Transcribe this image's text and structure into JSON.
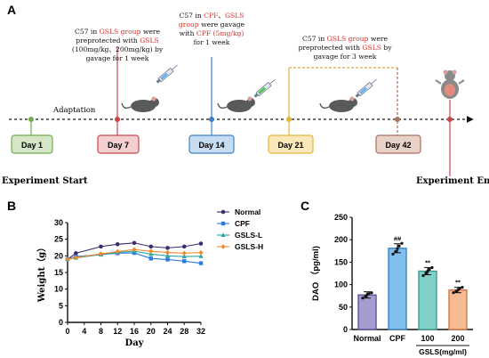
{
  "panel_a": {
    "letter": "A",
    "adaptation": "Adaptation",
    "start_label": "Experiment Start",
    "end_label": "Experiment End",
    "days": [
      {
        "label": "Day 1",
        "fill": "#d4e6c6",
        "stroke": "#6fae4c"
      },
      {
        "label": "Day 7",
        "fill": "#f3cfd0",
        "stroke": "#c9474c"
      },
      {
        "label": "Day 14",
        "fill": "#c8dcf1",
        "stroke": "#3f82c4"
      },
      {
        "label": "Day 21",
        "fill": "#fbe8b8",
        "stroke": "#e3b73c"
      },
      {
        "label": "Day 42",
        "fill": "#e8d1c9",
        "stroke": "#a8705f"
      }
    ],
    "notes": [
      {
        "lines": [
          [
            {
              "t": "C57 in "
            },
            {
              "t": "GSLS group",
              "red": true
            },
            {
              "t": " were"
            }
          ],
          [
            {
              "t": "preprotected with "
            },
            {
              "t": "GSLS",
              "red": true
            }
          ],
          [
            {
              "t": "(100mg/kg、200mg/kg) by"
            }
          ],
          [
            {
              "t": "gavage for 1 week"
            }
          ]
        ]
      },
      {
        "lines": [
          [
            {
              "t": "C57 in "
            },
            {
              "t": "CPF",
              "red": true
            },
            {
              "t": "、"
            },
            {
              "t": "GSLS",
              "red": true
            }
          ],
          [
            {
              "t": "group",
              "red": true
            },
            {
              "t": " were gavage"
            }
          ],
          [
            {
              "t": "with "
            },
            {
              "t": "CPF (5mg/kg)",
              "red": true
            }
          ],
          [
            {
              "t": "for 1 week"
            }
          ]
        ]
      },
      {
        "lines": [
          [
            {
              "t": "C57 in "
            },
            {
              "t": "GSLS group",
              "red": true
            },
            {
              "t": " were"
            }
          ],
          [
            {
              "t": "preprotected with "
            },
            {
              "t": "GSLS",
              "red": true
            },
            {
              "t": " by"
            }
          ],
          [
            {
              "t": "gavage for 3 week"
            }
          ]
        ]
      }
    ],
    "icons": [
      "mouse-icon",
      "syringe-icon",
      "dissected-mouse-icon"
    ]
  },
  "panel_b": {
    "letter": "B",
    "chart_data": {
      "type": "line",
      "xlabel": "Day",
      "ylabel": "Weight（g）",
      "x": [
        0,
        2,
        8,
        12,
        16,
        20,
        24,
        28,
        32
      ],
      "xticks": [
        0,
        4,
        8,
        12,
        16,
        20,
        24,
        28,
        32
      ],
      "yticks": [
        0,
        5,
        10,
        15,
        20,
        25,
        30
      ],
      "xlim": [
        0,
        32
      ],
      "ylim": [
        0,
        30
      ],
      "series": [
        {
          "name": "Normal",
          "color": "#3b2a6e",
          "marker": "circle",
          "values": [
            19.0,
            20.8,
            22.8,
            23.5,
            23.9,
            22.8,
            22.4,
            22.8,
            23.7
          ]
        },
        {
          "name": "CPF",
          "color": "#2b7be4",
          "marker": "square",
          "values": [
            19.0,
            19.8,
            20.4,
            20.8,
            20.9,
            19.2,
            18.9,
            18.4,
            17.8
          ]
        },
        {
          "name": "GSLS-L",
          "color": "#2aa7a2",
          "marker": "triangle",
          "values": [
            19.0,
            19.4,
            20.4,
            21.0,
            21.4,
            20.5,
            20.0,
            19.8,
            19.9
          ]
        },
        {
          "name": "GSLS-H",
          "color": "#f08a2c",
          "marker": "diamond",
          "values": [
            19.0,
            19.5,
            20.6,
            21.3,
            21.9,
            21.4,
            21.0,
            20.8,
            21.0
          ]
        }
      ]
    }
  },
  "panel_c": {
    "letter": "C",
    "chart_data": {
      "type": "bar",
      "ylabel": "DAO （pg/ml)",
      "categories": [
        "Normal",
        "CPF",
        "100",
        "200"
      ],
      "group_label": "GSLS(mg/ml)",
      "values": [
        77,
        181,
        130,
        88
      ],
      "errors": [
        7,
        10,
        8,
        6
      ],
      "annotations": [
        "",
        "##",
        "**",
        "**"
      ],
      "points": [
        [
          70,
          74,
          78,
          80,
          82
        ],
        [
          168,
          174,
          180,
          186,
          192
        ],
        [
          120,
          126,
          130,
          134,
          138
        ],
        [
          82,
          85,
          88,
          91,
          94
        ]
      ],
      "colors": [
        "#a69bd1",
        "#7fbfee",
        "#7fd1c8",
        "#f6ba94"
      ],
      "edge_colors": [
        "#5e5396",
        "#3f85c2",
        "#3e9e92",
        "#d9763f"
      ],
      "yticks": [
        0,
        50,
        100,
        150,
        200,
        250
      ],
      "ylim": [
        0,
        250
      ]
    }
  }
}
